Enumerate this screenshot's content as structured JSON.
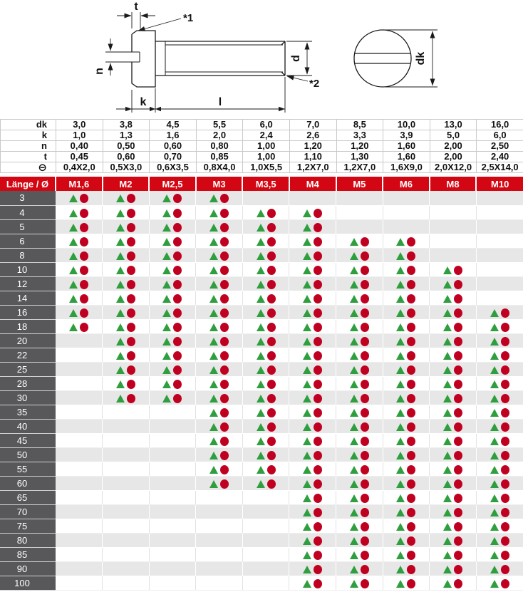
{
  "drawing": {
    "t": "t",
    "note1": "*1",
    "n": "n",
    "d": "d",
    "k": "k",
    "l": "l",
    "note2": "*2",
    "dk": "dk"
  },
  "dims_table": {
    "rows": [
      {
        "label": "dk",
        "values": [
          "3,0",
          "3,8",
          "4,5",
          "5,5",
          "6,0",
          "7,0",
          "8,5",
          "10,0",
          "13,0",
          "16,0"
        ]
      },
      {
        "label": "k",
        "values": [
          "1,0",
          "1,3",
          "1,6",
          "2,0",
          "2,4",
          "2,6",
          "3,3",
          "3,9",
          "5,0",
          "6,0"
        ]
      },
      {
        "label": "n",
        "values": [
          "0,40",
          "0,50",
          "0,60",
          "0,80",
          "1,00",
          "1,20",
          "1,20",
          "1,60",
          "2,00",
          "2,50"
        ]
      },
      {
        "label": "t",
        "values": [
          "0,45",
          "0,60",
          "0,70",
          "0,85",
          "1,00",
          "1,10",
          "1,30",
          "1,60",
          "2,00",
          "2,40"
        ]
      },
      {
        "label": "⊖",
        "values": [
          "0,4X2,0",
          "0,5X3,0",
          "0,6X3,5",
          "0,8X4,0",
          "1,0X5,5",
          "1,2X7,0",
          "1,2X7,0",
          "1,6X9,0",
          "2,0X12,0",
          "2,5X14,0"
        ]
      }
    ]
  },
  "matrix": {
    "header_label": "Länge / Ø",
    "columns": [
      "M1,6",
      "M2",
      "M2,5",
      "M3",
      "M3,5",
      "M4",
      "M5",
      "M6",
      "M8",
      "M10"
    ],
    "marker_icons": [
      "available-triangle-icon",
      "available-circle-icon"
    ],
    "rows": [
      {
        "length": "3",
        "available": [
          1,
          1,
          1,
          1,
          0,
          0,
          0,
          0,
          0,
          0
        ]
      },
      {
        "length": "4",
        "available": [
          1,
          1,
          1,
          1,
          1,
          1,
          0,
          0,
          0,
          0
        ]
      },
      {
        "length": "5",
        "available": [
          1,
          1,
          1,
          1,
          1,
          1,
          0,
          0,
          0,
          0
        ]
      },
      {
        "length": "6",
        "available": [
          1,
          1,
          1,
          1,
          1,
          1,
          1,
          1,
          0,
          0
        ]
      },
      {
        "length": "8",
        "available": [
          1,
          1,
          1,
          1,
          1,
          1,
          1,
          1,
          0,
          0
        ]
      },
      {
        "length": "10",
        "available": [
          1,
          1,
          1,
          1,
          1,
          1,
          1,
          1,
          1,
          0
        ]
      },
      {
        "length": "12",
        "available": [
          1,
          1,
          1,
          1,
          1,
          1,
          1,
          1,
          1,
          0
        ]
      },
      {
        "length": "14",
        "available": [
          1,
          1,
          1,
          1,
          1,
          1,
          1,
          1,
          1,
          0
        ]
      },
      {
        "length": "16",
        "available": [
          1,
          1,
          1,
          1,
          1,
          1,
          1,
          1,
          1,
          1
        ]
      },
      {
        "length": "18",
        "available": [
          1,
          1,
          1,
          1,
          1,
          1,
          1,
          1,
          1,
          1
        ]
      },
      {
        "length": "20",
        "available": [
          0,
          1,
          1,
          1,
          1,
          1,
          1,
          1,
          1,
          1
        ]
      },
      {
        "length": "22",
        "available": [
          0,
          1,
          1,
          1,
          1,
          1,
          1,
          1,
          1,
          1
        ]
      },
      {
        "length": "25",
        "available": [
          0,
          1,
          1,
          1,
          1,
          1,
          1,
          1,
          1,
          1
        ]
      },
      {
        "length": "28",
        "available": [
          0,
          1,
          1,
          1,
          1,
          1,
          1,
          1,
          1,
          1
        ]
      },
      {
        "length": "30",
        "available": [
          0,
          1,
          1,
          1,
          1,
          1,
          1,
          1,
          1,
          1
        ]
      },
      {
        "length": "35",
        "available": [
          0,
          0,
          0,
          1,
          1,
          1,
          1,
          1,
          1,
          1
        ]
      },
      {
        "length": "40",
        "available": [
          0,
          0,
          0,
          1,
          1,
          1,
          1,
          1,
          1,
          1
        ]
      },
      {
        "length": "45",
        "available": [
          0,
          0,
          0,
          1,
          1,
          1,
          1,
          1,
          1,
          1
        ]
      },
      {
        "length": "50",
        "available": [
          0,
          0,
          0,
          1,
          1,
          1,
          1,
          1,
          1,
          1
        ]
      },
      {
        "length": "55",
        "available": [
          0,
          0,
          0,
          1,
          1,
          1,
          1,
          1,
          1,
          1
        ]
      },
      {
        "length": "60",
        "available": [
          0,
          0,
          0,
          1,
          1,
          1,
          1,
          1,
          1,
          1
        ]
      },
      {
        "length": "65",
        "available": [
          0,
          0,
          0,
          0,
          0,
          1,
          1,
          1,
          1,
          1
        ]
      },
      {
        "length": "70",
        "available": [
          0,
          0,
          0,
          0,
          0,
          1,
          1,
          1,
          1,
          1
        ]
      },
      {
        "length": "75",
        "available": [
          0,
          0,
          0,
          0,
          0,
          1,
          1,
          1,
          1,
          1
        ]
      },
      {
        "length": "80",
        "available": [
          0,
          0,
          0,
          0,
          0,
          1,
          1,
          1,
          1,
          1
        ]
      },
      {
        "length": "85",
        "available": [
          0,
          0,
          0,
          0,
          0,
          1,
          1,
          1,
          1,
          1
        ]
      },
      {
        "length": "90",
        "available": [
          0,
          0,
          0,
          0,
          0,
          1,
          1,
          1,
          1,
          1
        ]
      },
      {
        "length": "100",
        "available": [
          0,
          0,
          0,
          0,
          0,
          1,
          1,
          1,
          1,
          1
        ]
      }
    ]
  },
  "colors": {
    "header_red": "#d30713",
    "length_col_gray": "#58585a",
    "row_alt_gray": "#e7e7e7",
    "grid_line": "#c9c9c9",
    "triangle_green": "#2f9e3e",
    "circle_red": "#c00020",
    "drawing_line": "#1a1a1a"
  }
}
